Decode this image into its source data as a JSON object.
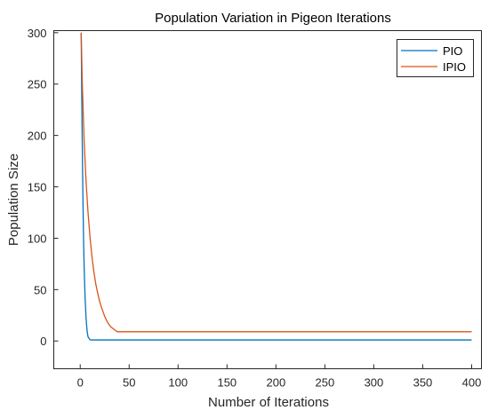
{
  "chart_data": {
    "type": "line",
    "title": "Population Variation in Pigeon Iterations",
    "xlabel": "Number of Iterations",
    "ylabel": "Population Size",
    "xlim": [
      -27,
      410
    ],
    "ylim": [
      -27,
      302
    ],
    "xticks": [
      0,
      50,
      100,
      150,
      200,
      250,
      300,
      350,
      400
    ],
    "yticks": [
      0,
      50,
      100,
      150,
      200,
      250,
      300
    ],
    "grid": false,
    "legend_position": "top-right",
    "series": [
      {
        "name": "PIO",
        "color": "#0072BD",
        "x": [
          1,
          1.5,
          2,
          2.5,
          3,
          3.5,
          4,
          5,
          6,
          7,
          8,
          10,
          12,
          15,
          20,
          400
        ],
        "y": [
          300,
          245,
          200,
          160,
          125,
          95,
          72,
          42,
          22,
          10,
          4,
          1.2,
          1,
          1,
          1,
          1
        ]
      },
      {
        "name": "IPIO",
        "color": "#D95319",
        "x": [
          1,
          2,
          4,
          6,
          8,
          10,
          12,
          14,
          16,
          18,
          20,
          22,
          25,
          28,
          31,
          35,
          38,
          40,
          400
        ],
        "y": [
          300,
          255,
          195,
          155,
          125,
          101,
          82,
          67,
          55,
          46,
          38,
          32,
          24,
          18,
          14,
          11,
          9,
          9,
          9
        ]
      }
    ]
  }
}
